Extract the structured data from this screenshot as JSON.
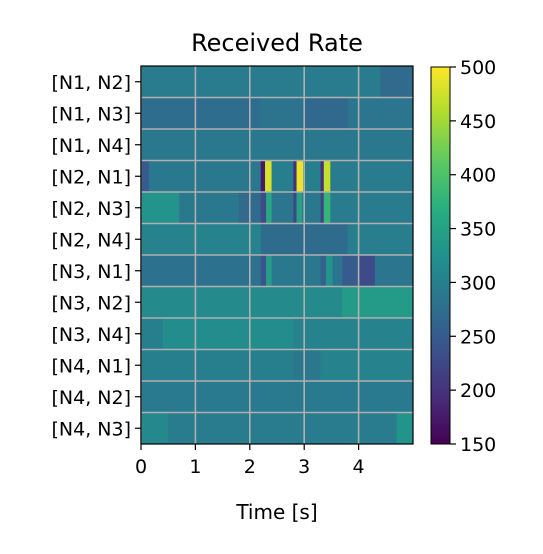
{
  "chart_data": {
    "type": "heatmap",
    "title": "Received Rate",
    "xlabel": "Time [s]",
    "ylabel": "",
    "xlim": [
      0,
      5
    ],
    "xticks": [
      0,
      1,
      2,
      3,
      4
    ],
    "xtick_labels": [
      "0",
      "1",
      "2",
      "3",
      "4"
    ],
    "rows": [
      "[N1, N2]",
      "[N1, N3]",
      "[N1, N4]",
      "[N2, N1]",
      "[N2, N3]",
      "[N2, N4]",
      "[N3, N1]",
      "[N3, N2]",
      "[N3, N4]",
      "[N4, N1]",
      "[N4, N2]",
      "[N4, N3]"
    ],
    "colorbar": {
      "colormap": "viridis",
      "range": [
        150,
        500
      ],
      "ticks": [
        150,
        200,
        250,
        300,
        350,
        400,
        450,
        500
      ],
      "tick_labels": [
        "150",
        "200",
        "250",
        "300",
        "350",
        "400",
        "450",
        "500"
      ]
    },
    "grid": true,
    "segments": [
      [
        [
          0,
          4.4,
          295
        ],
        [
          4.4,
          5.0,
          270
        ]
      ],
      [
        [
          0,
          2.2,
          275
        ],
        [
          2.2,
          3.0,
          282
        ],
        [
          3.0,
          3.8,
          268
        ],
        [
          3.8,
          5.0,
          285
        ]
      ],
      [
        [
          0,
          5.0,
          290
        ]
      ],
      [
        [
          0,
          0.15,
          250
        ],
        [
          0.15,
          2.2,
          290
        ],
        [
          2.2,
          2.28,
          175
        ],
        [
          2.28,
          2.4,
          480
        ],
        [
          2.4,
          2.8,
          300
        ],
        [
          2.8,
          2.86,
          200
        ],
        [
          2.86,
          2.98,
          490
        ],
        [
          2.98,
          3.3,
          300
        ],
        [
          3.3,
          3.36,
          200
        ],
        [
          3.36,
          3.48,
          470
        ],
        [
          3.48,
          5.0,
          295
        ]
      ],
      [
        [
          0,
          0.7,
          330
        ],
        [
          0.7,
          1.8,
          290
        ],
        [
          1.8,
          2.2,
          270
        ],
        [
          2.2,
          2.3,
          230
        ],
        [
          2.3,
          2.4,
          360
        ],
        [
          2.4,
          2.8,
          285
        ],
        [
          2.8,
          2.86,
          225
        ],
        [
          2.86,
          2.96,
          350
        ],
        [
          2.96,
          3.3,
          290
        ],
        [
          3.3,
          3.36,
          225
        ],
        [
          3.36,
          3.48,
          380
        ],
        [
          3.48,
          5.0,
          295
        ]
      ],
      [
        [
          0,
          2.2,
          305
        ],
        [
          2.2,
          3.8,
          272
        ],
        [
          3.8,
          5.0,
          298
        ]
      ],
      [
        [
          0,
          2.2,
          280
        ],
        [
          2.2,
          2.3,
          240
        ],
        [
          2.3,
          2.4,
          345
        ],
        [
          2.4,
          3.3,
          290
        ],
        [
          3.3,
          3.4,
          260
        ],
        [
          3.4,
          3.52,
          330
        ],
        [
          3.52,
          3.7,
          285
        ],
        [
          3.7,
          4.0,
          250
        ],
        [
          4.0,
          4.3,
          230
        ],
        [
          4.3,
          5.0,
          285
        ]
      ],
      [
        [
          0,
          3.7,
          315
        ],
        [
          3.7,
          5.0,
          340
        ]
      ],
      [
        [
          0,
          0.4,
          300
        ],
        [
          0.4,
          2.8,
          320
        ],
        [
          2.8,
          5.0,
          305
        ]
      ],
      [
        [
          0,
          2.8,
          300
        ],
        [
          2.8,
          3.3,
          288
        ],
        [
          3.3,
          5.0,
          305
        ]
      ],
      [
        [
          0,
          5.0,
          292
        ]
      ],
      [
        [
          0,
          0.5,
          312
        ],
        [
          0.5,
          4.7,
          295
        ],
        [
          4.7,
          5.0,
          330
        ]
      ]
    ]
  }
}
